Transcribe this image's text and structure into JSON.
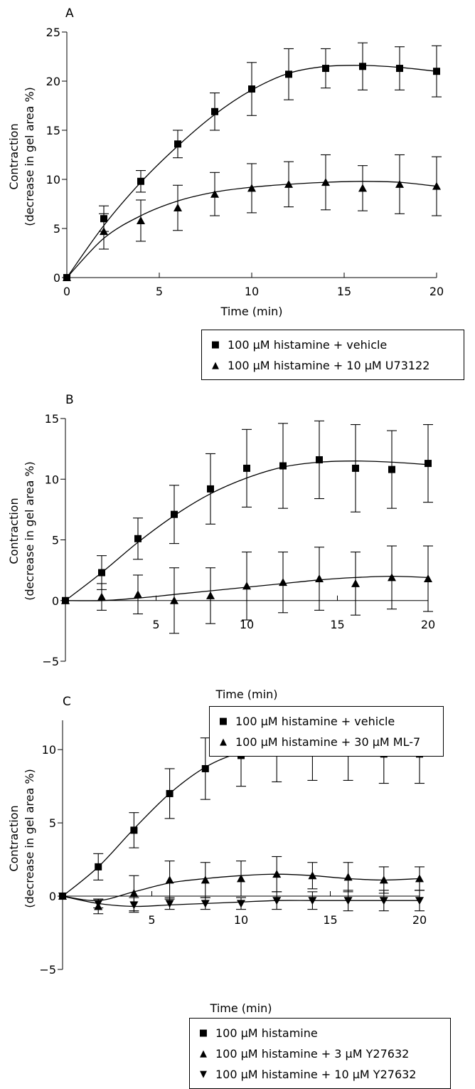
{
  "chart_data": [
    {
      "type": "line",
      "panel_label": "A",
      "xlabel": "Time (min)",
      "ylabel_line1": "Contraction",
      "ylabel_line2": "(decrease in gel area %)",
      "xlim": [
        0,
        20
      ],
      "ylim": [
        0,
        25
      ],
      "xticks": [
        0,
        5,
        10,
        15,
        20
      ],
      "yticks": [
        0,
        5,
        10,
        15,
        20,
        25
      ],
      "series": [
        {
          "name": "100 μM histamine + vehicle",
          "marker": "square",
          "x": [
            0,
            2,
            4,
            6,
            8,
            10,
            12,
            14,
            16,
            18,
            20
          ],
          "y": [
            0,
            6.0,
            9.8,
            13.6,
            16.9,
            19.2,
            20.7,
            21.3,
            21.5,
            21.3,
            21.0
          ],
          "err": [
            0,
            1.3,
            1.1,
            1.4,
            1.9,
            2.7,
            2.6,
            2.0,
            2.4,
            2.2,
            2.6
          ],
          "curve_x": [
            0,
            2,
            4,
            6,
            8,
            10,
            12,
            14,
            16,
            18,
            20
          ],
          "curve_y": [
            0,
            5.3,
            9.7,
            13.4,
            16.6,
            19.1,
            20.8,
            21.5,
            21.6,
            21.4,
            21.0
          ]
        },
        {
          "name": "100 μM histamine + 10 μM U73122",
          "marker": "triangle-up",
          "x": [
            0,
            2,
            4,
            6,
            8,
            10,
            12,
            14,
            16,
            18,
            20
          ],
          "y": [
            0,
            4.7,
            5.8,
            7.1,
            8.5,
            9.1,
            9.5,
            9.7,
            9.1,
            9.5,
            9.3
          ],
          "err": [
            0,
            1.8,
            2.1,
            2.3,
            2.2,
            2.5,
            2.3,
            2.8,
            2.3,
            3.0,
            3.0
          ],
          "curve_x": [
            0,
            2,
            4,
            6,
            8,
            10,
            12,
            14,
            16,
            18,
            20
          ],
          "curve_y": [
            0,
            4.0,
            6.3,
            7.8,
            8.7,
            9.2,
            9.5,
            9.7,
            9.8,
            9.7,
            9.3
          ]
        }
      ],
      "legend": [
        "100 μM histamine + vehicle",
        "100 μM histamine + 10 μM U73122"
      ]
    },
    {
      "type": "line",
      "panel_label": "B",
      "xlabel": "Time (min)",
      "ylabel_line1": "Contraction",
      "ylabel_line2": "(decrease in gel area %)",
      "xlim": [
        0,
        20
      ],
      "ylim": [
        -5,
        15
      ],
      "xticks": [
        5,
        10,
        15,
        20
      ],
      "yticks": [
        -5,
        0,
        5,
        10,
        15
      ],
      "series": [
        {
          "name": "100 μM histamine + vehicle",
          "marker": "square",
          "x": [
            0,
            2,
            4,
            6,
            8,
            10,
            12,
            14,
            16,
            18,
            20
          ],
          "y": [
            0,
            2.3,
            5.1,
            7.1,
            9.2,
            10.9,
            11.1,
            11.6,
            10.9,
            10.8,
            11.3
          ],
          "err": [
            0,
            1.4,
            1.7,
            2.4,
            2.9,
            3.2,
            3.5,
            3.2,
            3.6,
            3.2,
            3.2
          ],
          "curve_x": [
            0,
            2,
            4,
            6,
            8,
            10,
            12,
            14,
            16,
            18,
            20
          ],
          "curve_y": [
            0,
            2.3,
            4.8,
            7.0,
            8.8,
            10.1,
            11.0,
            11.4,
            11.5,
            11.4,
            11.2
          ]
        },
        {
          "name": "100 μM histamine + 30 μM ML-7",
          "marker": "triangle-up",
          "x": [
            0,
            2,
            4,
            6,
            8,
            10,
            12,
            14,
            16,
            18,
            20
          ],
          "y": [
            0,
            0.3,
            0.5,
            0.0,
            0.4,
            1.2,
            1.5,
            1.8,
            1.4,
            1.9,
            1.8
          ],
          "err": [
            0,
            1.1,
            1.6,
            2.7,
            2.3,
            2.8,
            2.5,
            2.6,
            2.6,
            2.6,
            2.7
          ],
          "curve_x": [
            0,
            2,
            4,
            6,
            8,
            10,
            12,
            14,
            16,
            18,
            20
          ],
          "curve_y": [
            0,
            0.0,
            0.2,
            0.5,
            0.8,
            1.1,
            1.4,
            1.7,
            1.9,
            2.0,
            1.9
          ]
        }
      ],
      "legend": [
        "100 μM histamine + vehicle",
        "100 μM histamine + 30 μM ML-7"
      ]
    },
    {
      "type": "line",
      "panel_label": "C",
      "xlabel": "Time (min)",
      "ylabel_line1": "Contraction",
      "ylabel_line2": "(decrease in gel area %)",
      "xlim": [
        0,
        20
      ],
      "ylim": [
        -5,
        12
      ],
      "xticks": [
        5,
        10,
        15,
        20
      ],
      "yticks": [
        -5,
        0,
        5,
        10
      ],
      "series": [
        {
          "name": "100 μM histamine",
          "marker": "square",
          "x": [
            0,
            2,
            4,
            6,
            8,
            10,
            12,
            14,
            16,
            18,
            20
          ],
          "y": [
            0,
            2.0,
            4.5,
            7.0,
            8.7,
            9.6,
            10.0,
            10.1,
            10.0,
            9.7,
            9.7
          ],
          "err": [
            0,
            0.9,
            1.2,
            1.7,
            2.1,
            2.1,
            2.2,
            2.2,
            2.1,
            2.0,
            2.0
          ],
          "curve_x": [
            0,
            2,
            4,
            6,
            8,
            10,
            12,
            14,
            16,
            18,
            20
          ],
          "curve_y": [
            0,
            2.0,
            4.6,
            7.0,
            8.8,
            9.8,
            10.1,
            10.1,
            9.9,
            9.7,
            9.8
          ]
        },
        {
          "name": "100 μM histamine + 3 μM Y27632",
          "marker": "triangle-up",
          "x": [
            0,
            2,
            4,
            6,
            8,
            10,
            12,
            14,
            16,
            18,
            20
          ],
          "y": [
            0,
            -0.7,
            0.2,
            1.1,
            1.1,
            1.2,
            1.5,
            1.4,
            1.3,
            1.1,
            1.2
          ],
          "err": [
            0,
            0.5,
            1.2,
            1.3,
            1.2,
            1.2,
            1.2,
            0.9,
            1.0,
            0.9,
            0.8
          ],
          "curve_x": [
            0,
            2,
            4,
            6,
            8,
            10,
            12,
            14,
            16,
            18,
            20
          ],
          "curve_y": [
            0,
            -0.3,
            0.3,
            0.9,
            1.2,
            1.4,
            1.5,
            1.4,
            1.2,
            1.1,
            1.2
          ]
        },
        {
          "name": "100 μM histamine + 10 μM Y27632",
          "marker": "triangle-down",
          "x": [
            0,
            2,
            4,
            6,
            8,
            10,
            12,
            14,
            16,
            18,
            20
          ],
          "y": [
            0,
            -0.5,
            -0.6,
            -0.5,
            -0.5,
            -0.5,
            -0.3,
            -0.3,
            -0.3,
            -0.3,
            -0.3
          ],
          "err": [
            0,
            0.3,
            0.5,
            0.4,
            0.4,
            0.4,
            0.6,
            0.6,
            0.7,
            0.7,
            0.7
          ],
          "curve_x": [
            0,
            2,
            4,
            6,
            8,
            10,
            12,
            14,
            16,
            18,
            20
          ],
          "curve_y": [
            0,
            -0.5,
            -0.7,
            -0.6,
            -0.5,
            -0.4,
            -0.3,
            -0.3,
            -0.3,
            -0.3,
            -0.3
          ]
        }
      ],
      "legend": [
        "100 μM histamine",
        "100 μM histamine + 3 μM Y27632",
        "100 μM histamine + 10 μM Y27632"
      ]
    }
  ]
}
